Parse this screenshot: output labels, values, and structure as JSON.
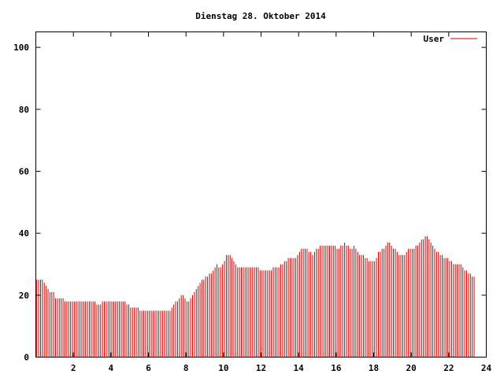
{
  "chart_data": {
    "type": "bar",
    "title": "Dienstag 28. Oktober 2014",
    "xlabel": "",
    "ylabel": "",
    "xlim": [
      0,
      24
    ],
    "ylim": [
      0,
      105
    ],
    "x_ticks": [
      2,
      4,
      6,
      8,
      10,
      12,
      14,
      16,
      18,
      20,
      22,
      24
    ],
    "y_ticks": [
      0,
      20,
      40,
      60,
      80,
      100
    ],
    "grid": false,
    "legend_position": "top-right",
    "colors": {
      "series": "#cc0000",
      "axis": "#000000",
      "background": "#ffffff"
    },
    "series": [
      {
        "name": "User",
        "x_step_hours": 0.1,
        "values": [
          25,
          25,
          25,
          25,
          24,
          23,
          22,
          21,
          21,
          21,
          19,
          19,
          19,
          19,
          19,
          18,
          18,
          18,
          18,
          18,
          18,
          18,
          18,
          18,
          18,
          18,
          18,
          18,
          18,
          18,
          18,
          18,
          17,
          17,
          17,
          18,
          18,
          18,
          18,
          18,
          18,
          18,
          18,
          18,
          18,
          18,
          18,
          18,
          17,
          17,
          16,
          16,
          16,
          16,
          16,
          15,
          15,
          15,
          15,
          15,
          15,
          15,
          15,
          15,
          15,
          15,
          15,
          15,
          15,
          15,
          15,
          15,
          16,
          17,
          18,
          18,
          19,
          20,
          20,
          19,
          18,
          18,
          19,
          20,
          21,
          22,
          23,
          24,
          25,
          25,
          26,
          26,
          27,
          27,
          28,
          29,
          30,
          29,
          29,
          30,
          31,
          33,
          33,
          33,
          32,
          31,
          30,
          29,
          29,
          29,
          29,
          29,
          29,
          29,
          29,
          29,
          29,
          29,
          29,
          28,
          28,
          28,
          28,
          28,
          28,
          28,
          29,
          29,
          29,
          29,
          30,
          30,
          31,
          31,
          32,
          32,
          32,
          32,
          32,
          33,
          34,
          35,
          35,
          35,
          35,
          34,
          34,
          33,
          34,
          35,
          35,
          36,
          36,
          36,
          36,
          36,
          36,
          36,
          36,
          36,
          35,
          35,
          36,
          36,
          37,
          36,
          36,
          35,
          35,
          36,
          35,
          34,
          33,
          33,
          33,
          32,
          32,
          31,
          31,
          31,
          31,
          32,
          34,
          34,
          35,
          35,
          36,
          37,
          37,
          36,
          35,
          35,
          34,
          33,
          33,
          33,
          33,
          34,
          35,
          35,
          35,
          35,
          36,
          36,
          37,
          38,
          38,
          39,
          39,
          38,
          37,
          36,
          35,
          34,
          34,
          33,
          33,
          32,
          32,
          32,
          31,
          31,
          30,
          30,
          30,
          30,
          30,
          29,
          28,
          28,
          27,
          27,
          26,
          26
        ]
      }
    ]
  }
}
